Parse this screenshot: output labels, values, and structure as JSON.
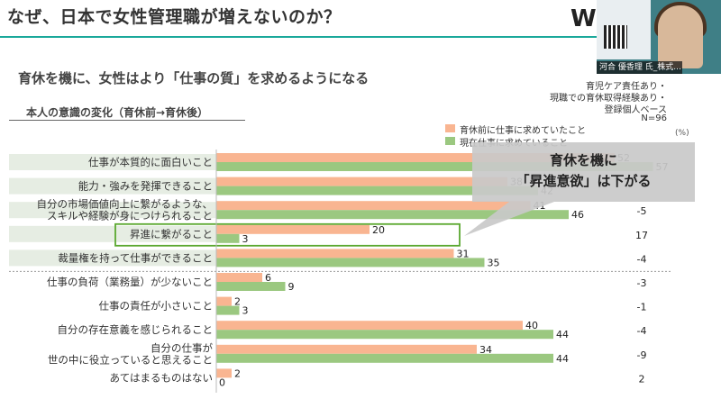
{
  "slide": {
    "title": "なぜ、日本で女性管理職が増えないのか？",
    "subtitle": "育休を機に、女性はより「仕事の質」を求めるようになる",
    "section_label": "本人の意識の変化（育休前→育休後）",
    "logo_text": "W",
    "accent_color": "#1aa89a",
    "notes": [
      "育児ケア責任あり・",
      "現職での育休取得経験あり・",
      "登録個人ベース",
      "N=96"
    ],
    "unit": "(%)",
    "callout": {
      "line1": "育休を機に",
      "line2": "「昇進意欲」は下がる"
    },
    "webcam": {
      "name_label": "河合 優香理 氏_株式..."
    }
  },
  "chart_data": {
    "type": "bar",
    "orientation": "horizontal",
    "xlim": [
      0,
      64
    ],
    "categories": [
      "仕事が本質的に面白いこと",
      "能力・強みを発揮できること",
      "自分の市場価値向上に繋がるような、\nスキルや経験が身につけられること",
      "昇進に繋がること",
      "裁量権を持って仕事ができること",
      "仕事の負荷（業務量）が少ないこと",
      "仕事の責任が小さいこと",
      "自分の存在意義を感じられること",
      "自分の仕事が\n世の中に役立っていると思えること",
      "あてはまるものはない"
    ],
    "series": [
      {
        "name": "育休前に仕事に求めていたこと",
        "color": "#f9b591",
        "values": [
          52,
          38,
          41,
          20,
          31,
          6,
          2,
          40,
          34,
          2
        ]
      },
      {
        "name": "現在仕事に求めていること",
        "color": "#9bc880",
        "values": [
          57,
          42,
          46,
          3,
          35,
          9,
          3,
          44,
          44,
          0
        ]
      }
    ],
    "diff": [
      "",
      "",
      "-5",
      "17",
      "-4",
      "-3",
      "-1",
      "-4",
      "-9",
      "2"
    ],
    "highlight_index": 3,
    "separator_after_index": 4
  }
}
